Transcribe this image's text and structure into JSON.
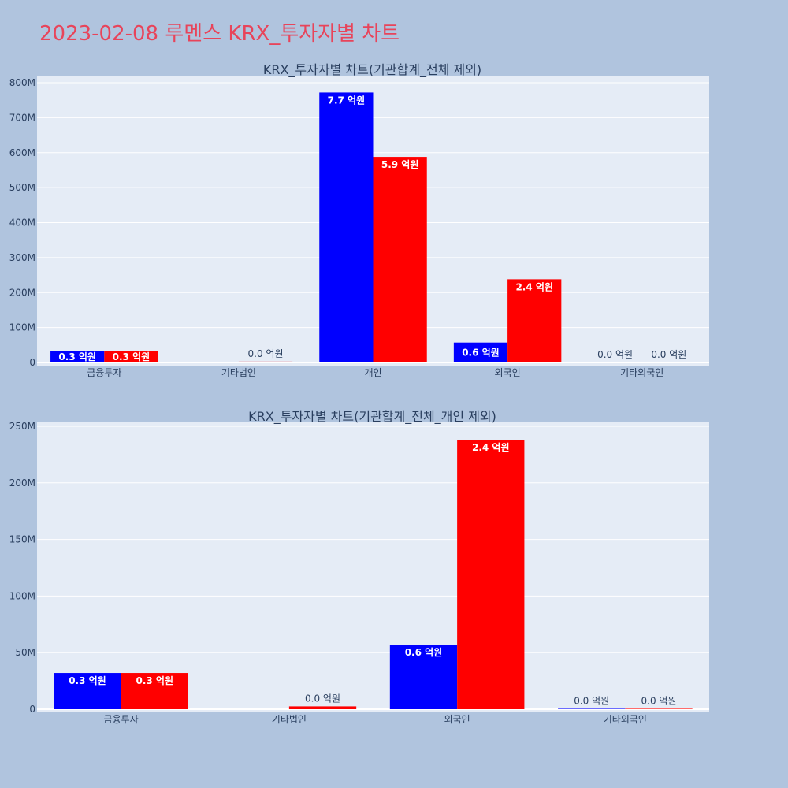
{
  "page": {
    "title": "2023-02-08 루멘스 KRX_투자자별 차트",
    "title_color": "#e8445a",
    "background": "#b0c4de",
    "plot_background": "#e5ecf6"
  },
  "chart_data": [
    {
      "type": "bar",
      "title": "KRX_투자자별 차트(기관합계_전체 제외)",
      "categories": [
        "금융투자",
        "기타법인",
        "개인",
        "외국인",
        "기타외국인"
      ],
      "series": [
        {
          "color": "#0000ff",
          "values": [
            32000000,
            0,
            772000000,
            57000000,
            400000
          ],
          "labels": [
            "0.3 억원",
            "",
            "7.7 억원",
            "0.6 억원",
            "0.0 억원"
          ]
        },
        {
          "color": "#ff0000",
          "values": [
            32000000,
            2500000,
            588000000,
            238000000,
            400000
          ],
          "labels": [
            "0.3 억원",
            "0.0 억원",
            "5.9 억원",
            "2.4 억원",
            "0.0 억원"
          ]
        }
      ],
      "ylim": [
        0,
        820000000
      ],
      "yticks": [
        0,
        100000000,
        200000000,
        300000000,
        400000000,
        500000000,
        600000000,
        700000000,
        800000000
      ],
      "ytick_labels": [
        "0",
        "100M",
        "200M",
        "300M",
        "400M",
        "500M",
        "600M",
        "700M",
        "800M"
      ],
      "grid": true
    },
    {
      "type": "bar",
      "title": "KRX_투자자별 차트(기관합계_전체_개인 제외)",
      "categories": [
        "금융투자",
        "기타법인",
        "외국인",
        "기타외국인"
      ],
      "series": [
        {
          "color": "#0000ff",
          "values": [
            32000000,
            0,
            57000000,
            400000
          ],
          "labels": [
            "0.3 억원",
            "",
            "0.6 억원",
            "0.0 억원"
          ]
        },
        {
          "color": "#ff0000",
          "values": [
            32000000,
            2500000,
            238000000,
            400000
          ],
          "labels": [
            "0.3 억원",
            "0.0 억원",
            "2.4 억원",
            "0.0 억원"
          ]
        }
      ],
      "ylim": [
        0,
        252000000
      ],
      "yticks": [
        0,
        50000000,
        100000000,
        150000000,
        200000000,
        250000000
      ],
      "ytick_labels": [
        "0",
        "50M",
        "100M",
        "150M",
        "200M",
        "250M"
      ],
      "grid": true
    }
  ]
}
